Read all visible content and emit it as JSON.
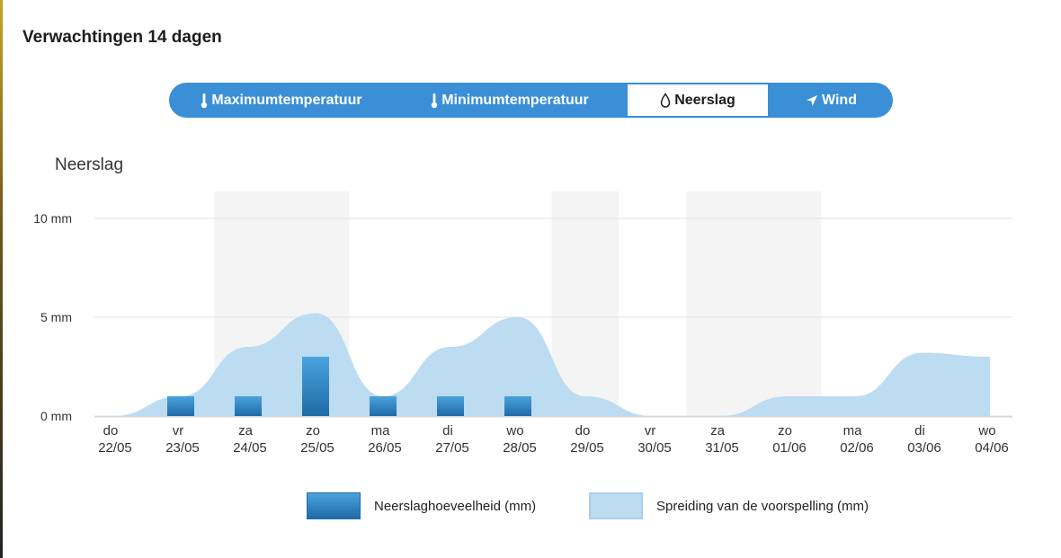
{
  "page": {
    "title": "Verwachtingen 14 dagen"
  },
  "tabs": [
    {
      "label": "Maximumtemperatuur",
      "icon": "thermometer-icon",
      "active": false
    },
    {
      "label": "Minimumtemperatuur",
      "icon": "thermometer-icon",
      "active": false
    },
    {
      "label": "Neerslag",
      "icon": "droplet-icon",
      "active": true
    },
    {
      "label": "Wind",
      "icon": "wind-direction-icon",
      "active": false
    }
  ],
  "colors": {
    "accent": "#3a8fd6",
    "bar_top": "#4aa3dd",
    "bar_bottom": "#1f6aa6",
    "spread": "#bcdcf2",
    "weekend_band": "#f4f4f4",
    "gridline": "#e2e2e2"
  },
  "chart_data": {
    "type": "bar",
    "title": "Neerslag",
    "ylabel": "",
    "xlabel": "",
    "ylim": [
      0,
      10
    ],
    "y_ticks": [
      "0 mm",
      "5 mm",
      "10 mm"
    ],
    "y_tick_values": [
      0,
      5,
      10
    ],
    "grid": true,
    "legend_position": "bottom",
    "days": [
      "do",
      "vr",
      "za",
      "zo",
      "ma",
      "di",
      "wo",
      "do",
      "vr",
      "za",
      "zo",
      "ma",
      "di",
      "wo"
    ],
    "categories": [
      "22/05",
      "23/05",
      "24/05",
      "25/05",
      "26/05",
      "27/05",
      "28/05",
      "29/05",
      "30/05",
      "31/05",
      "01/06",
      "02/06",
      "03/06",
      "04/06"
    ],
    "weekend_bands": [
      [
        "24/05",
        "25/05"
      ],
      [
        "29/05"
      ],
      [
        "31/05",
        "01/06"
      ]
    ],
    "series": [
      {
        "name": "Neerslaghoeveelheid (mm)",
        "type": "bar",
        "values": [
          0,
          1,
          1,
          3,
          1,
          1,
          1,
          0,
          0,
          0,
          0,
          0,
          0,
          0
        ]
      },
      {
        "name": "Spreiding van de voorspelling (mm)",
        "type": "area",
        "values": [
          0,
          1,
          3.5,
          5.2,
          1,
          3.5,
          5,
          1,
          0,
          0,
          1,
          1,
          3.2,
          3
        ]
      }
    ]
  }
}
